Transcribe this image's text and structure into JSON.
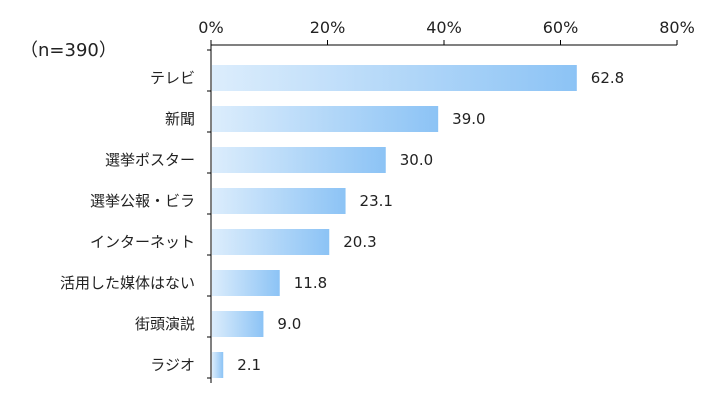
{
  "note": "（n=390）",
  "chart_data": {
    "type": "bar",
    "orientation": "horizontal",
    "categories": [
      "テレビ",
      "新聞",
      "選挙ポスター",
      "選挙公報・ビラ",
      "インターネット",
      "活用した媒体はない",
      "街頭演説",
      "ラジオ"
    ],
    "values": [
      62.8,
      39.0,
      30.0,
      23.1,
      20.3,
      11.8,
      9.0,
      2.1
    ],
    "value_labels": [
      "62.8",
      "39.0",
      "30.0",
      "23.1",
      "20.3",
      "11.8",
      "9.0",
      "2.1"
    ],
    "xlim": [
      0,
      80
    ],
    "x_ticks": [
      0,
      20,
      40,
      60,
      80
    ],
    "x_tick_labels": [
      "0%",
      "20%",
      "40%",
      "60%",
      "80%"
    ],
    "x_axis_position": "top",
    "grid": false,
    "bar_color_start": "#dcedfc",
    "bar_color_end": "#8cc3f5",
    "axis_color": "#000000"
  }
}
